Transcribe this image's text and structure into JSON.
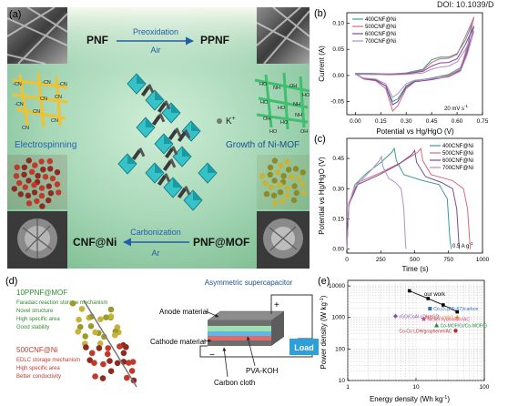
{
  "doi_text": "DOI: 10.1039/D",
  "panel_labels": {
    "a": "(a)",
    "b": "(b)",
    "c": "(c)",
    "d": "(d)",
    "e": "(e)"
  },
  "panel_a": {
    "pnf": "PNF",
    "preoxidation": "Preoxidation",
    "air_1": "Air",
    "ppnf": "PPNF",
    "cn_labels": [
      "-CN",
      "-CN",
      "CN",
      "-CN",
      "CN",
      "CN",
      "CN",
      "-CN",
      "CN"
    ],
    "oh_labels": [
      "HO",
      "NH",
      "OH",
      "HO",
      "HO",
      "HO",
      "NH",
      "OH",
      "HO",
      "NH",
      "HO",
      "OH"
    ],
    "ion_label": "K",
    "ion_charge": "+",
    "electrospinning": "Electrospinning",
    "growth_ni_mof": "Growth of Ni-MOF",
    "cnf_ni": "CNF@Ni",
    "carbonization": "Carbonization",
    "ar": "Ar",
    "pnf_mof": "PNF@MOF",
    "colors": {
      "bg_top": "#e6f2dc",
      "bg_center": "#c7e6cc",
      "arrow": "#1f5fa8",
      "electrospinning": "#2a62b0"
    }
  },
  "panel_b": {
    "type": "line",
    "xlabel": "Potential vs Hg/HgO (V)",
    "ylabel": "Current (A)",
    "x_ticks": [
      "0.00",
      "0.15",
      "0.30",
      "0.45",
      "0.60",
      "0.75"
    ],
    "y_ticks": [
      "0.10",
      "0.05",
      "0.00",
      "-0.05"
    ],
    "xlim": [
      -0.05,
      0.75
    ],
    "ylim": [
      -0.075,
      0.12
    ],
    "annotation": "20 mV s",
    "annotation_sup": "-1",
    "legend_placement": "top-left",
    "series": [
      {
        "name": "400CNF@Ni",
        "color": "#3d9c8c",
        "upper": [
          [
            0.0,
            0.004
          ],
          [
            0.1,
            0.004
          ],
          [
            0.2,
            0.003
          ],
          [
            0.3,
            0.005
          ],
          [
            0.4,
            0.012
          ],
          [
            0.45,
            0.03
          ],
          [
            0.5,
            0.035
          ],
          [
            0.55,
            0.035
          ],
          [
            0.6,
            0.042
          ],
          [
            0.65,
            0.068
          ],
          [
            0.69,
            0.1
          ]
        ],
        "lower": [
          [
            0.69,
            0.1
          ],
          [
            0.66,
            0.05
          ],
          [
            0.62,
            0.015
          ],
          [
            0.55,
            0.002
          ],
          [
            0.45,
            -0.005
          ],
          [
            0.35,
            -0.01
          ],
          [
            0.3,
            -0.02
          ],
          [
            0.25,
            -0.045
          ],
          [
            0.22,
            -0.05
          ],
          [
            0.18,
            -0.02
          ],
          [
            0.12,
            -0.008
          ],
          [
            0.05,
            -0.006
          ],
          [
            0.0,
            0.004
          ]
        ]
      },
      {
        "name": "500CNF@Ni",
        "color": "#d46a7e",
        "upper": [
          [
            0.0,
            0.003
          ],
          [
            0.1,
            0.003
          ],
          [
            0.2,
            0.003
          ],
          [
            0.3,
            0.004
          ],
          [
            0.4,
            0.01
          ],
          [
            0.45,
            0.025
          ],
          [
            0.5,
            0.032
          ],
          [
            0.55,
            0.033
          ],
          [
            0.6,
            0.04
          ],
          [
            0.65,
            0.075
          ],
          [
            0.7,
            0.112
          ]
        ],
        "lower": [
          [
            0.7,
            0.112
          ],
          [
            0.66,
            0.055
          ],
          [
            0.62,
            0.012
          ],
          [
            0.55,
            0.0
          ],
          [
            0.45,
            -0.008
          ],
          [
            0.35,
            -0.012
          ],
          [
            0.3,
            -0.025
          ],
          [
            0.25,
            -0.058
          ],
          [
            0.22,
            -0.068
          ],
          [
            0.18,
            -0.025
          ],
          [
            0.12,
            -0.01
          ],
          [
            0.05,
            -0.007
          ],
          [
            0.0,
            0.003
          ]
        ]
      },
      {
        "name": "600CNF@Ni",
        "color": "#7b4a9a",
        "upper": [
          [
            0.0,
            0.003
          ],
          [
            0.1,
            0.002
          ],
          [
            0.2,
            0.002
          ],
          [
            0.3,
            0.003
          ],
          [
            0.4,
            0.008
          ],
          [
            0.45,
            0.018
          ],
          [
            0.5,
            0.024
          ],
          [
            0.55,
            0.025
          ],
          [
            0.6,
            0.032
          ],
          [
            0.65,
            0.06
          ],
          [
            0.7,
            0.095
          ]
        ],
        "lower": [
          [
            0.7,
            0.095
          ],
          [
            0.66,
            0.045
          ],
          [
            0.62,
            0.01
          ],
          [
            0.55,
            -0.002
          ],
          [
            0.45,
            -0.008
          ],
          [
            0.35,
            -0.012
          ],
          [
            0.3,
            -0.022
          ],
          [
            0.25,
            -0.05
          ],
          [
            0.22,
            -0.056
          ],
          [
            0.18,
            -0.02
          ],
          [
            0.12,
            -0.009
          ],
          [
            0.05,
            -0.006
          ],
          [
            0.0,
            0.003
          ]
        ]
      },
      {
        "name": "700CNF@Ni",
        "color": "#b48cc8",
        "upper": [
          [
            0.0,
            0.002
          ],
          [
            0.1,
            0.002
          ],
          [
            0.2,
            0.001
          ],
          [
            0.3,
            0.002
          ],
          [
            0.4,
            0.005
          ],
          [
            0.45,
            0.012
          ],
          [
            0.5,
            0.016
          ],
          [
            0.55,
            0.018
          ],
          [
            0.6,
            0.026
          ],
          [
            0.65,
            0.05
          ],
          [
            0.7,
            0.085
          ]
        ],
        "lower": [
          [
            0.7,
            0.085
          ],
          [
            0.66,
            0.04
          ],
          [
            0.62,
            0.008
          ],
          [
            0.55,
            -0.003
          ],
          [
            0.45,
            -0.006
          ],
          [
            0.35,
            -0.009
          ],
          [
            0.3,
            -0.016
          ],
          [
            0.25,
            -0.035
          ],
          [
            0.22,
            -0.042
          ],
          [
            0.18,
            -0.016
          ],
          [
            0.12,
            -0.007
          ],
          [
            0.05,
            -0.005
          ],
          [
            0.0,
            0.002
          ]
        ]
      }
    ]
  },
  "panel_c": {
    "type": "line",
    "xlabel": "Time (s)",
    "ylabel": "Potential vs Hg/HgO (V)",
    "x_ticks": [
      "0",
      "250",
      "500",
      "750",
      "1000"
    ],
    "y_ticks": [
      "0.45",
      "0.30",
      "0.15",
      "0.00"
    ],
    "xlim": [
      0,
      1000
    ],
    "ylim": [
      -0.02,
      0.55
    ],
    "annotation": "0.5 A g",
    "annotation_sup": "-1",
    "legend_placement": "top-right",
    "series": [
      {
        "name": "400CNF@Ni",
        "color": "#3d9c8c",
        "points": [
          [
            0,
            0.0
          ],
          [
            15,
            0.22
          ],
          [
            60,
            0.32
          ],
          [
            150,
            0.38
          ],
          [
            250,
            0.43
          ],
          [
            330,
            0.48
          ],
          [
            350,
            0.5
          ],
          [
            365,
            0.44
          ],
          [
            420,
            0.37
          ],
          [
            560,
            0.34
          ],
          [
            680,
            0.32
          ],
          [
            740,
            0.25
          ],
          [
            760,
            0.05
          ],
          [
            770,
            0.0
          ]
        ]
      },
      {
        "name": "500CNF@Ni",
        "color": "#d46a7e",
        "points": [
          [
            0,
            0.0
          ],
          [
            15,
            0.23
          ],
          [
            80,
            0.33
          ],
          [
            250,
            0.38
          ],
          [
            400,
            0.43
          ],
          [
            520,
            0.48
          ],
          [
            545,
            0.5
          ],
          [
            560,
            0.44
          ],
          [
            620,
            0.37
          ],
          [
            780,
            0.34
          ],
          [
            860,
            0.3
          ],
          [
            890,
            0.2
          ],
          [
            905,
            0.05
          ],
          [
            910,
            0.0
          ]
        ]
      },
      {
        "name": "600CNF@Ni",
        "color": "#7b4a9a",
        "points": [
          [
            0,
            0.0
          ],
          [
            15,
            0.22
          ],
          [
            80,
            0.32
          ],
          [
            240,
            0.37
          ],
          [
            380,
            0.42
          ],
          [
            480,
            0.47
          ],
          [
            500,
            0.49
          ],
          [
            515,
            0.43
          ],
          [
            580,
            0.36
          ],
          [
            700,
            0.33
          ],
          [
            780,
            0.3
          ],
          [
            810,
            0.2
          ],
          [
            825,
            0.04
          ],
          [
            830,
            0.0
          ]
        ]
      },
      {
        "name": "700CNF@Ni",
        "color": "#b48cc8",
        "points": [
          [
            0,
            0.0
          ],
          [
            15,
            0.21
          ],
          [
            50,
            0.3
          ],
          [
            120,
            0.35
          ],
          [
            190,
            0.4
          ],
          [
            240,
            0.44
          ],
          [
            255,
            0.46
          ],
          [
            265,
            0.41
          ],
          [
            310,
            0.35
          ],
          [
            360,
            0.33
          ],
          [
            400,
            0.3
          ],
          [
            420,
            0.2
          ],
          [
            432,
            0.03
          ],
          [
            436,
            0.0
          ]
        ]
      }
    ]
  },
  "panel_d": {
    "title_10ppnf": "10PPNF@MOF",
    "lines_10ppnf": [
      "Faradaic reaction storage mechanism",
      "Novel structure",
      "High specific area",
      "Good stability"
    ],
    "title_500cnf": "500CNF@Ni",
    "lines_500cnf": [
      "EDLC storage mechanism",
      "High specific area",
      "Better conductivity"
    ],
    "asymmetric": "Asymmetric supercapacitor",
    "anode": "Anode material",
    "cathode": "Cathode material",
    "pva_koh": "PVA-KOH",
    "carbon_cloth": "Carbon cloth",
    "load": "Load",
    "plus": "+",
    "minus": "−",
    "colors": {
      "green_title": "#2e8b2e",
      "red_title": "#c0392b",
      "load_bg": "#2f9fd8"
    }
  },
  "panel_e": {
    "type": "scatter",
    "xlabel": "Energy density (Wh kg",
    "xlabel_sup": "-1",
    "xlabel_end": ")",
    "ylabel": "Power density (W kg",
    "ylabel_sup": "-1",
    "ylabel_end": ")",
    "x_scale": "log",
    "y_scale": "log",
    "xlim": [
      1,
      100
    ],
    "ylim": [
      10,
      15000
    ],
    "x_ticks": [
      {
        "v": 1,
        "l": "1"
      },
      {
        "v": 10,
        "l": "10"
      },
      {
        "v": 100,
        "l": "100"
      }
    ],
    "y_ticks": [
      {
        "v": 10000,
        "l": "10000"
      },
      {
        "v": 1000,
        "l": "1000"
      },
      {
        "v": 100,
        "l": "100"
      },
      {
        "v": 10,
        "l": "10"
      }
    ],
    "our_work_label": "our work",
    "our_work": [
      [
        8,
        7000
      ],
      [
        15,
        4000
      ],
      [
        25,
        2500
      ],
      [
        40,
        1500
      ]
    ],
    "refs": [
      {
        "label": "Co₃O₄(ZIF-67)/carbon",
        "color": "#2a6fb0",
        "x": 16,
        "y": 1900,
        "marker": "square"
      },
      {
        "label": "rGO/CoAl LDH/rGO",
        "color": "#8a4fb0",
        "x": 5,
        "y": 1100,
        "marker": "diamond"
      },
      {
        "label": "Nickel hydroxide//AC",
        "color": "#d43f8d",
        "x": 13,
        "y": 900,
        "marker": "star"
      },
      {
        "label": "NiCo₂O₄//rGO",
        "color": "#e0882a",
        "x": 40,
        "y": 1000,
        "marker": "star"
      },
      {
        "label": "Co-MOF/G//Co-MOF/G",
        "color": "#2b8a4a",
        "x": 20,
        "y": 560,
        "marker": "triangle"
      },
      {
        "label": "Co-Co LDH/graphene//AC",
        "color": "#b03030",
        "x": 38,
        "y": 380,
        "marker": "circle"
      }
    ]
  }
}
